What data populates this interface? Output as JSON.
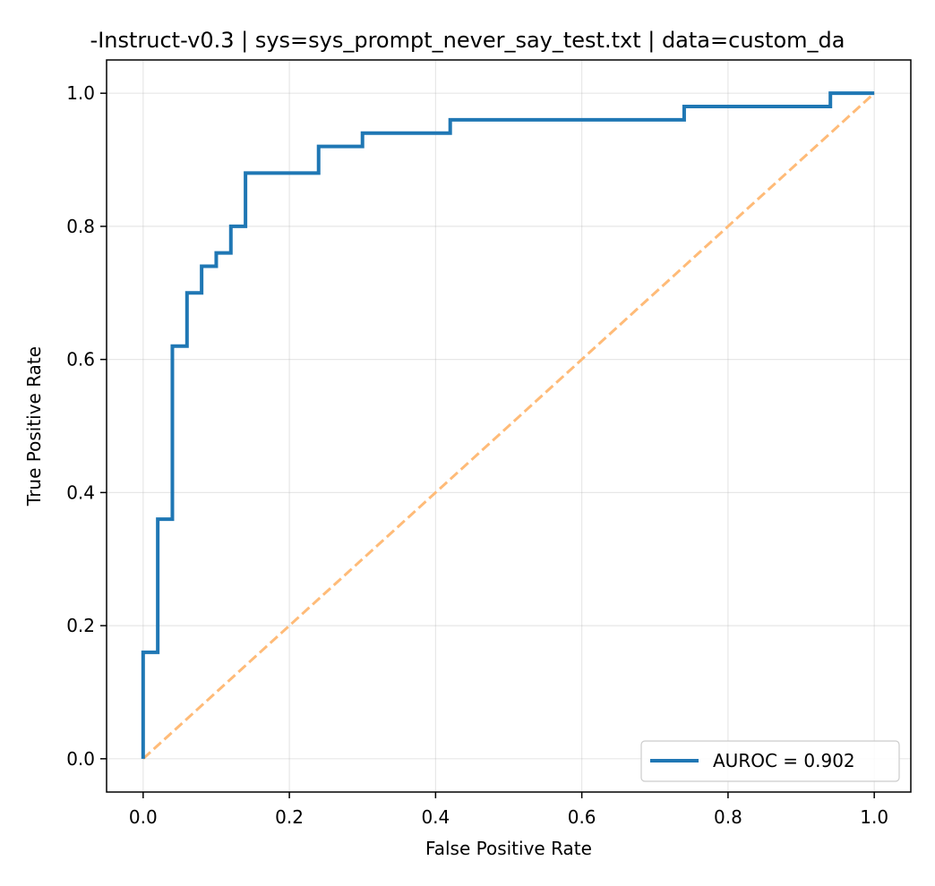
{
  "chart_data": {
    "type": "line",
    "title": "-Instruct-v0.3 | sys=sys_prompt_never_say_test.txt | data=custom_da",
    "xlabel": "False Positive Rate",
    "ylabel": "True Positive Rate",
    "xlim": [
      -0.05,
      1.05
    ],
    "ylim": [
      -0.05,
      1.05
    ],
    "xticks": [
      0.0,
      0.2,
      0.4,
      0.6,
      0.8,
      1.0
    ],
    "yticks": [
      0.0,
      0.2,
      0.4,
      0.6,
      0.8,
      1.0
    ],
    "xtick_labels": [
      "0.0",
      "0.2",
      "0.4",
      "0.6",
      "0.8",
      "1.0"
    ],
    "ytick_labels": [
      "0.0",
      "0.2",
      "0.4",
      "0.6",
      "0.8",
      "1.0"
    ],
    "grid": true,
    "legend_position": "lower-right",
    "series": [
      {
        "name": "AUROC = 0.902",
        "color": "#1f77b4",
        "style": "solid-step",
        "x": [
          0.0,
          0.0,
          0.02,
          0.02,
          0.04,
          0.04,
          0.06,
          0.06,
          0.08,
          0.08,
          0.1,
          0.1,
          0.12,
          0.12,
          0.14,
          0.14,
          0.24,
          0.24,
          0.3,
          0.3,
          0.42,
          0.42,
          0.74,
          0.74,
          0.94,
          0.94,
          1.0
        ],
        "y": [
          0.0,
          0.16,
          0.16,
          0.36,
          0.36,
          0.62,
          0.62,
          0.7,
          0.7,
          0.74,
          0.74,
          0.76,
          0.76,
          0.8,
          0.8,
          0.88,
          0.88,
          0.92,
          0.92,
          0.94,
          0.94,
          0.96,
          0.96,
          0.98,
          0.98,
          1.0,
          1.0
        ]
      },
      {
        "color": "#ffbb78",
        "style": "dashed",
        "x": [
          0.0,
          1.0
        ],
        "y": [
          0.0,
          1.0
        ]
      }
    ]
  }
}
